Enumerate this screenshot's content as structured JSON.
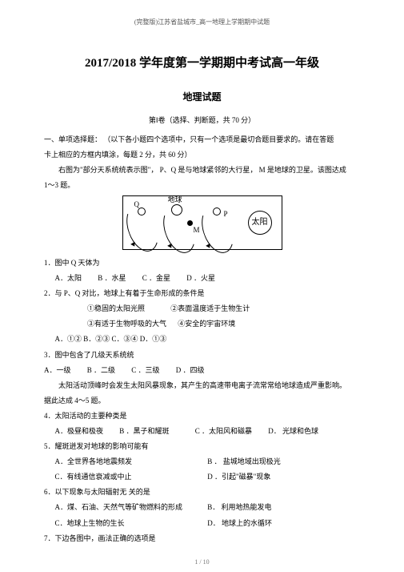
{
  "header": "(完整版)江苏省盐城市_高一地理上学期期中试题",
  "main_title": "2017/2018 学年度第一学期期中考试高一年级",
  "sub_title": "地理试题",
  "section_note": "第Ⅰ卷（选择、判断题，共      70 分）",
  "instruction_line1": "一、单项选择题：  （以下各小题四个选项中，只有一个选项是最切合题目要求的。请在答题",
  "instruction_line2": "卡上相应的方框内填涂，每题        2 分，共 60 分）",
  "fig_intro1": "右图为\"部分天系统统表示图\"，  P、Q 是与地球紧邻的大行星，   M 是地球的卫星。该图达成",
  "fig_intro2": "1～3 题。",
  "diagram": {
    "labels": {
      "q": "Q",
      "earth": "地球",
      "m": "M",
      "p": "P",
      "sun": "太阳"
    }
  },
  "q1": {
    "stem": "1．图中 Q 天体为",
    "opts": {
      "a": "A．太阳",
      "b": "B  ．水星",
      "c": "C  ．金星",
      "d": "D  ．火星"
    }
  },
  "q2": {
    "stem": "2．与 P、Q 对比，地球上有着于生命形成的条件是",
    "c1": "①稳固的太阳光照",
    "c2": "②表面温度适于生物生计",
    "c3": "③有适于生物呼吸的大气",
    "c4": "④安全的宇宙环境",
    "opts": {
      "a": "A．①② B．②③ C．③④ D．①③"
    }
  },
  "q3": {
    "stem": "3．图中包含了几级天系统统",
    "opts": {
      "a": "A．一级",
      "b": "B  ．二级",
      "c": "C ．三级",
      "d": "D  ．四级"
    }
  },
  "sun_intro1": "太阳活动顶峰时会发生太阳风暴现象，其产生的高速带电离子流常常给地球造成严重影响。",
  "sun_intro2": "据此达成 4～5 题。",
  "q4": {
    "stem": "4．太阳活动的主要种类是",
    "opts": {
      "a": "A．极昼和极夜",
      "b": "B  ．黑子和耀斑",
      "c": "C  ．太阳风和磁暴",
      "d": "D．  光球和色球"
    }
  },
  "q5": {
    "stem": "5．耀斑迸发对地球的影响可能有",
    "opts": {
      "a": "A．全世界各地地震频发",
      "b": "B ．  盐城地域出现极光",
      "c": "C．有线通信衰减或中止",
      "d": "D ．引起\"磁暴\"现象"
    }
  },
  "q6": {
    "stem": "6．以下现象与太阳辐射无  关的是",
    "opts": {
      "a": "A．煤、石油、天然气等矿物燃料的形成",
      "b": "B．  利用地热能发电",
      "c": "C．地球上生物的生长",
      "d": "D．  地球上的水循环"
    }
  },
  "q7": {
    "stem": "7．下边各图中，画法正确的选项是"
  },
  "footer": "1 / 10"
}
